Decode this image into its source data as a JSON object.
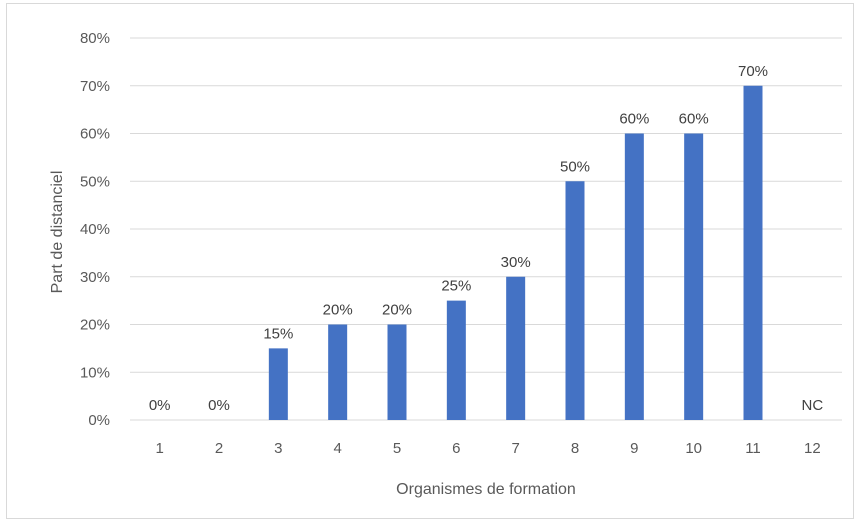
{
  "chart_data": {
    "type": "bar",
    "categories": [
      "1",
      "2",
      "3",
      "4",
      "5",
      "6",
      "7",
      "8",
      "9",
      "10",
      "11",
      "12"
    ],
    "values": [
      0,
      0,
      15,
      20,
      20,
      25,
      30,
      50,
      60,
      60,
      70,
      null
    ],
    "data_labels": [
      "0%",
      "0%",
      "15%",
      "20%",
      "20%",
      "25%",
      "30%",
      "50%",
      "60%",
      "60%",
      "70%",
      "NC"
    ],
    "y_ticks": [
      "0%",
      "10%",
      "20%",
      "30%",
      "40%",
      "50%",
      "60%",
      "70%",
      "80%"
    ],
    "xlabel": "Organismes de formation",
    "ylabel": "Part de distanciel",
    "ylim": [
      0,
      80
    ],
    "grid": true,
    "bar_color": "#4472c4",
    "grid_color": "#d9d9d9"
  }
}
